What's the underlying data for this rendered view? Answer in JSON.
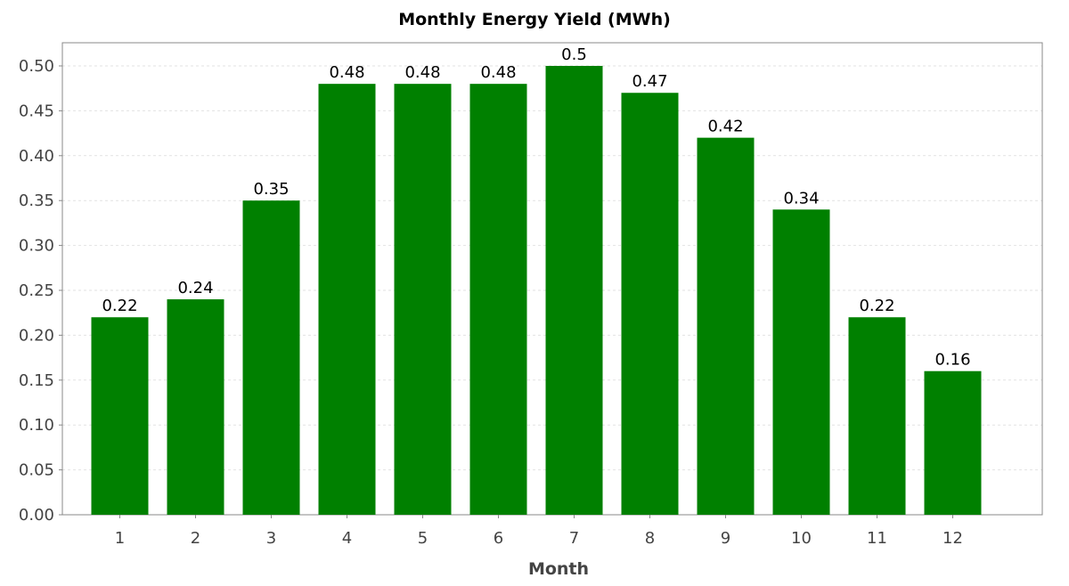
{
  "chart_data": {
    "type": "bar",
    "title": "Monthly Energy Yield (MWh)",
    "xlabel": "Month",
    "ylabel": "",
    "categories": [
      "1",
      "2",
      "3",
      "4",
      "5",
      "6",
      "7",
      "8",
      "9",
      "10",
      "11",
      "12"
    ],
    "values": [
      0.22,
      0.24,
      0.35,
      0.48,
      0.48,
      0.48,
      0.5,
      0.47,
      0.42,
      0.34,
      0.22,
      0.16
    ],
    "value_labels": [
      "0.22",
      "0.24",
      "0.35",
      "0.48",
      "0.48",
      "0.48",
      "0.5",
      "0.47",
      "0.42",
      "0.34",
      "0.22",
      "0.16"
    ],
    "ylim": [
      0,
      0.5
    ],
    "yticks": [
      "0.00",
      "0.05",
      "0.10",
      "0.15",
      "0.20",
      "0.25",
      "0.30",
      "0.35",
      "0.40",
      "0.45",
      "0.50"
    ],
    "grid": true,
    "legend": "none",
    "bar_color": "#008000",
    "grid_color": "#e2e2e2"
  }
}
